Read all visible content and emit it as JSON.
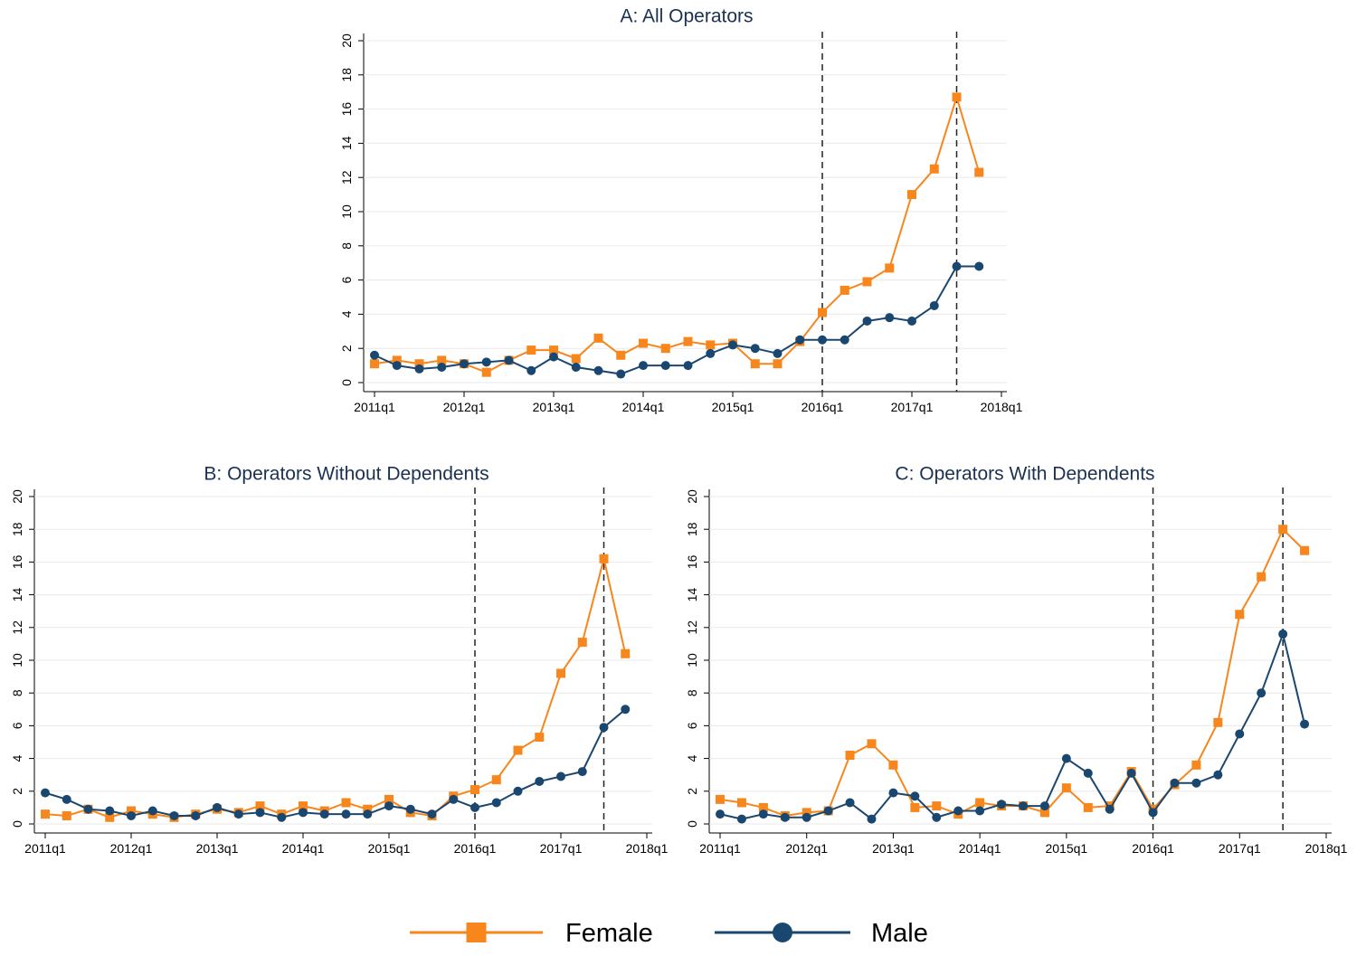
{
  "chart_data": [
    {
      "type": "line",
      "title": "A: All Operators",
      "x": [
        "2011q1",
        "2011q2",
        "2011q3",
        "2011q4",
        "2012q1",
        "2012q2",
        "2012q3",
        "2012q4",
        "2013q1",
        "2013q2",
        "2013q3",
        "2013q4",
        "2014q1",
        "2014q2",
        "2014q3",
        "2014q4",
        "2015q1",
        "2015q2",
        "2015q3",
        "2015q4",
        "2016q1",
        "2016q2",
        "2016q3",
        "2016q4",
        "2017q1",
        "2017q2",
        "2017q3",
        "2017q4"
      ],
      "xlim": [
        "2011q1",
        "2018q1"
      ],
      "xticks": [
        "2011q1",
        "2012q1",
        "2013q1",
        "2014q1",
        "2015q1",
        "2016q1",
        "2017q1",
        "2018q1"
      ],
      "ylim": [
        0,
        20
      ],
      "yticks": [
        0,
        2,
        4,
        6,
        8,
        10,
        12,
        14,
        16,
        18,
        20
      ],
      "grid": true,
      "vlines": [
        "2016q1",
        "2017q3"
      ],
      "series": [
        {
          "name": "Female",
          "color": "#f7861c",
          "marker": "square",
          "values": [
            1.1,
            1.3,
            1.1,
            1.3,
            1.1,
            0.6,
            1.3,
            1.9,
            1.9,
            1.4,
            2.6,
            1.6,
            2.3,
            2.0,
            2.4,
            2.2,
            2.3,
            1.1,
            1.1,
            2.4,
            4.1,
            5.4,
            5.9,
            6.7,
            11.0,
            12.5,
            16.7,
            12.3
          ]
        },
        {
          "name": "Male",
          "color": "#1a476f",
          "marker": "circle",
          "values": [
            1.6,
            1.0,
            0.8,
            0.9,
            1.1,
            1.2,
            1.3,
            0.7,
            1.5,
            0.9,
            0.7,
            0.5,
            1.0,
            1.0,
            1.0,
            1.7,
            2.2,
            2.0,
            1.7,
            2.5,
            2.5,
            2.5,
            3.6,
            3.8,
            3.6,
            4.5,
            6.8,
            6.8
          ]
        }
      ]
    },
    {
      "type": "line",
      "title": "B: Operators Without Dependents",
      "x": [
        "2011q1",
        "2011q2",
        "2011q3",
        "2011q4",
        "2012q1",
        "2012q2",
        "2012q3",
        "2012q4",
        "2013q1",
        "2013q2",
        "2013q3",
        "2013q4",
        "2014q1",
        "2014q2",
        "2014q3",
        "2014q4",
        "2015q1",
        "2015q2",
        "2015q3",
        "2015q4",
        "2016q1",
        "2016q2",
        "2016q3",
        "2016q4",
        "2017q1",
        "2017q2",
        "2017q3",
        "2017q4"
      ],
      "xlim": [
        "2011q1",
        "2018q1"
      ],
      "xticks": [
        "2011q1",
        "2012q1",
        "2013q1",
        "2014q1",
        "2015q1",
        "2016q1",
        "2017q1",
        "2018q1"
      ],
      "ylim": [
        0,
        20
      ],
      "yticks": [
        0,
        2,
        4,
        6,
        8,
        10,
        12,
        14,
        16,
        18,
        20
      ],
      "grid": true,
      "vlines": [
        "2016q1",
        "2017q3"
      ],
      "series": [
        {
          "color": "#f7861c",
          "marker": "square",
          "values": [
            0.6,
            0.5,
            0.9,
            0.4,
            0.8,
            0.6,
            0.4,
            0.6,
            0.9,
            0.7,
            1.1,
            0.6,
            1.1,
            0.8,
            1.3,
            0.9,
            1.5,
            0.7,
            0.5,
            1.7,
            2.1,
            2.7,
            4.5,
            5.3,
            9.2,
            11.1,
            16.2,
            10.4
          ]
        },
        {
          "color": "#1a476f",
          "marker": "circle",
          "values": [
            1.9,
            1.5,
            0.9,
            0.8,
            0.5,
            0.8,
            0.5,
            0.5,
            1.0,
            0.6,
            0.7,
            0.4,
            0.7,
            0.6,
            0.6,
            0.6,
            1.1,
            0.9,
            0.6,
            1.5,
            1.0,
            1.3,
            2.0,
            2.6,
            2.9,
            3.2,
            5.9,
            7.0
          ]
        }
      ]
    },
    {
      "type": "line",
      "title": "C: Operators With Dependents",
      "x": [
        "2011q1",
        "2011q2",
        "2011q3",
        "2011q4",
        "2012q1",
        "2012q2",
        "2012q3",
        "2012q4",
        "2013q1",
        "2013q2",
        "2013q3",
        "2013q4",
        "2014q1",
        "2014q2",
        "2014q3",
        "2014q4",
        "2015q1",
        "2015q2",
        "2015q3",
        "2015q4",
        "2016q1",
        "2016q2",
        "2016q3",
        "2016q4",
        "2017q1",
        "2017q2",
        "2017q3",
        "2017q4"
      ],
      "xlim": [
        "2011q1",
        "2018q1"
      ],
      "xticks": [
        "2011q1",
        "2012q1",
        "2013q1",
        "2014q1",
        "2015q1",
        "2016q1",
        "2017q1",
        "2018q1"
      ],
      "ylim": [
        0,
        20
      ],
      "yticks": [
        0,
        2,
        4,
        6,
        8,
        10,
        12,
        14,
        16,
        18,
        20
      ],
      "grid": true,
      "vlines": [
        "2016q1",
        "2017q3"
      ],
      "series": [
        {
          "color": "#f7861c",
          "marker": "square",
          "values": [
            1.5,
            1.3,
            1.0,
            0.5,
            0.7,
            0.8,
            4.2,
            4.9,
            3.6,
            1.0,
            1.1,
            0.6,
            1.3,
            1.1,
            1.1,
            0.7,
            2.2,
            1.0,
            1.1,
            3.2,
            0.9,
            2.4,
            3.6,
            6.2,
            12.8,
            15.1,
            18.0,
            16.7
          ]
        },
        {
          "color": "#1a476f",
          "marker": "circle",
          "values": [
            0.6,
            0.3,
            0.6,
            0.4,
            0.4,
            0.8,
            1.3,
            0.3,
            1.9,
            1.7,
            0.4,
            0.8,
            0.8,
            1.2,
            1.1,
            1.1,
            4.0,
            3.1,
            0.9,
            3.1,
            0.7,
            2.5,
            2.5,
            3.0,
            5.5,
            8.0,
            11.6,
            6.1
          ]
        }
      ]
    }
  ]
}
